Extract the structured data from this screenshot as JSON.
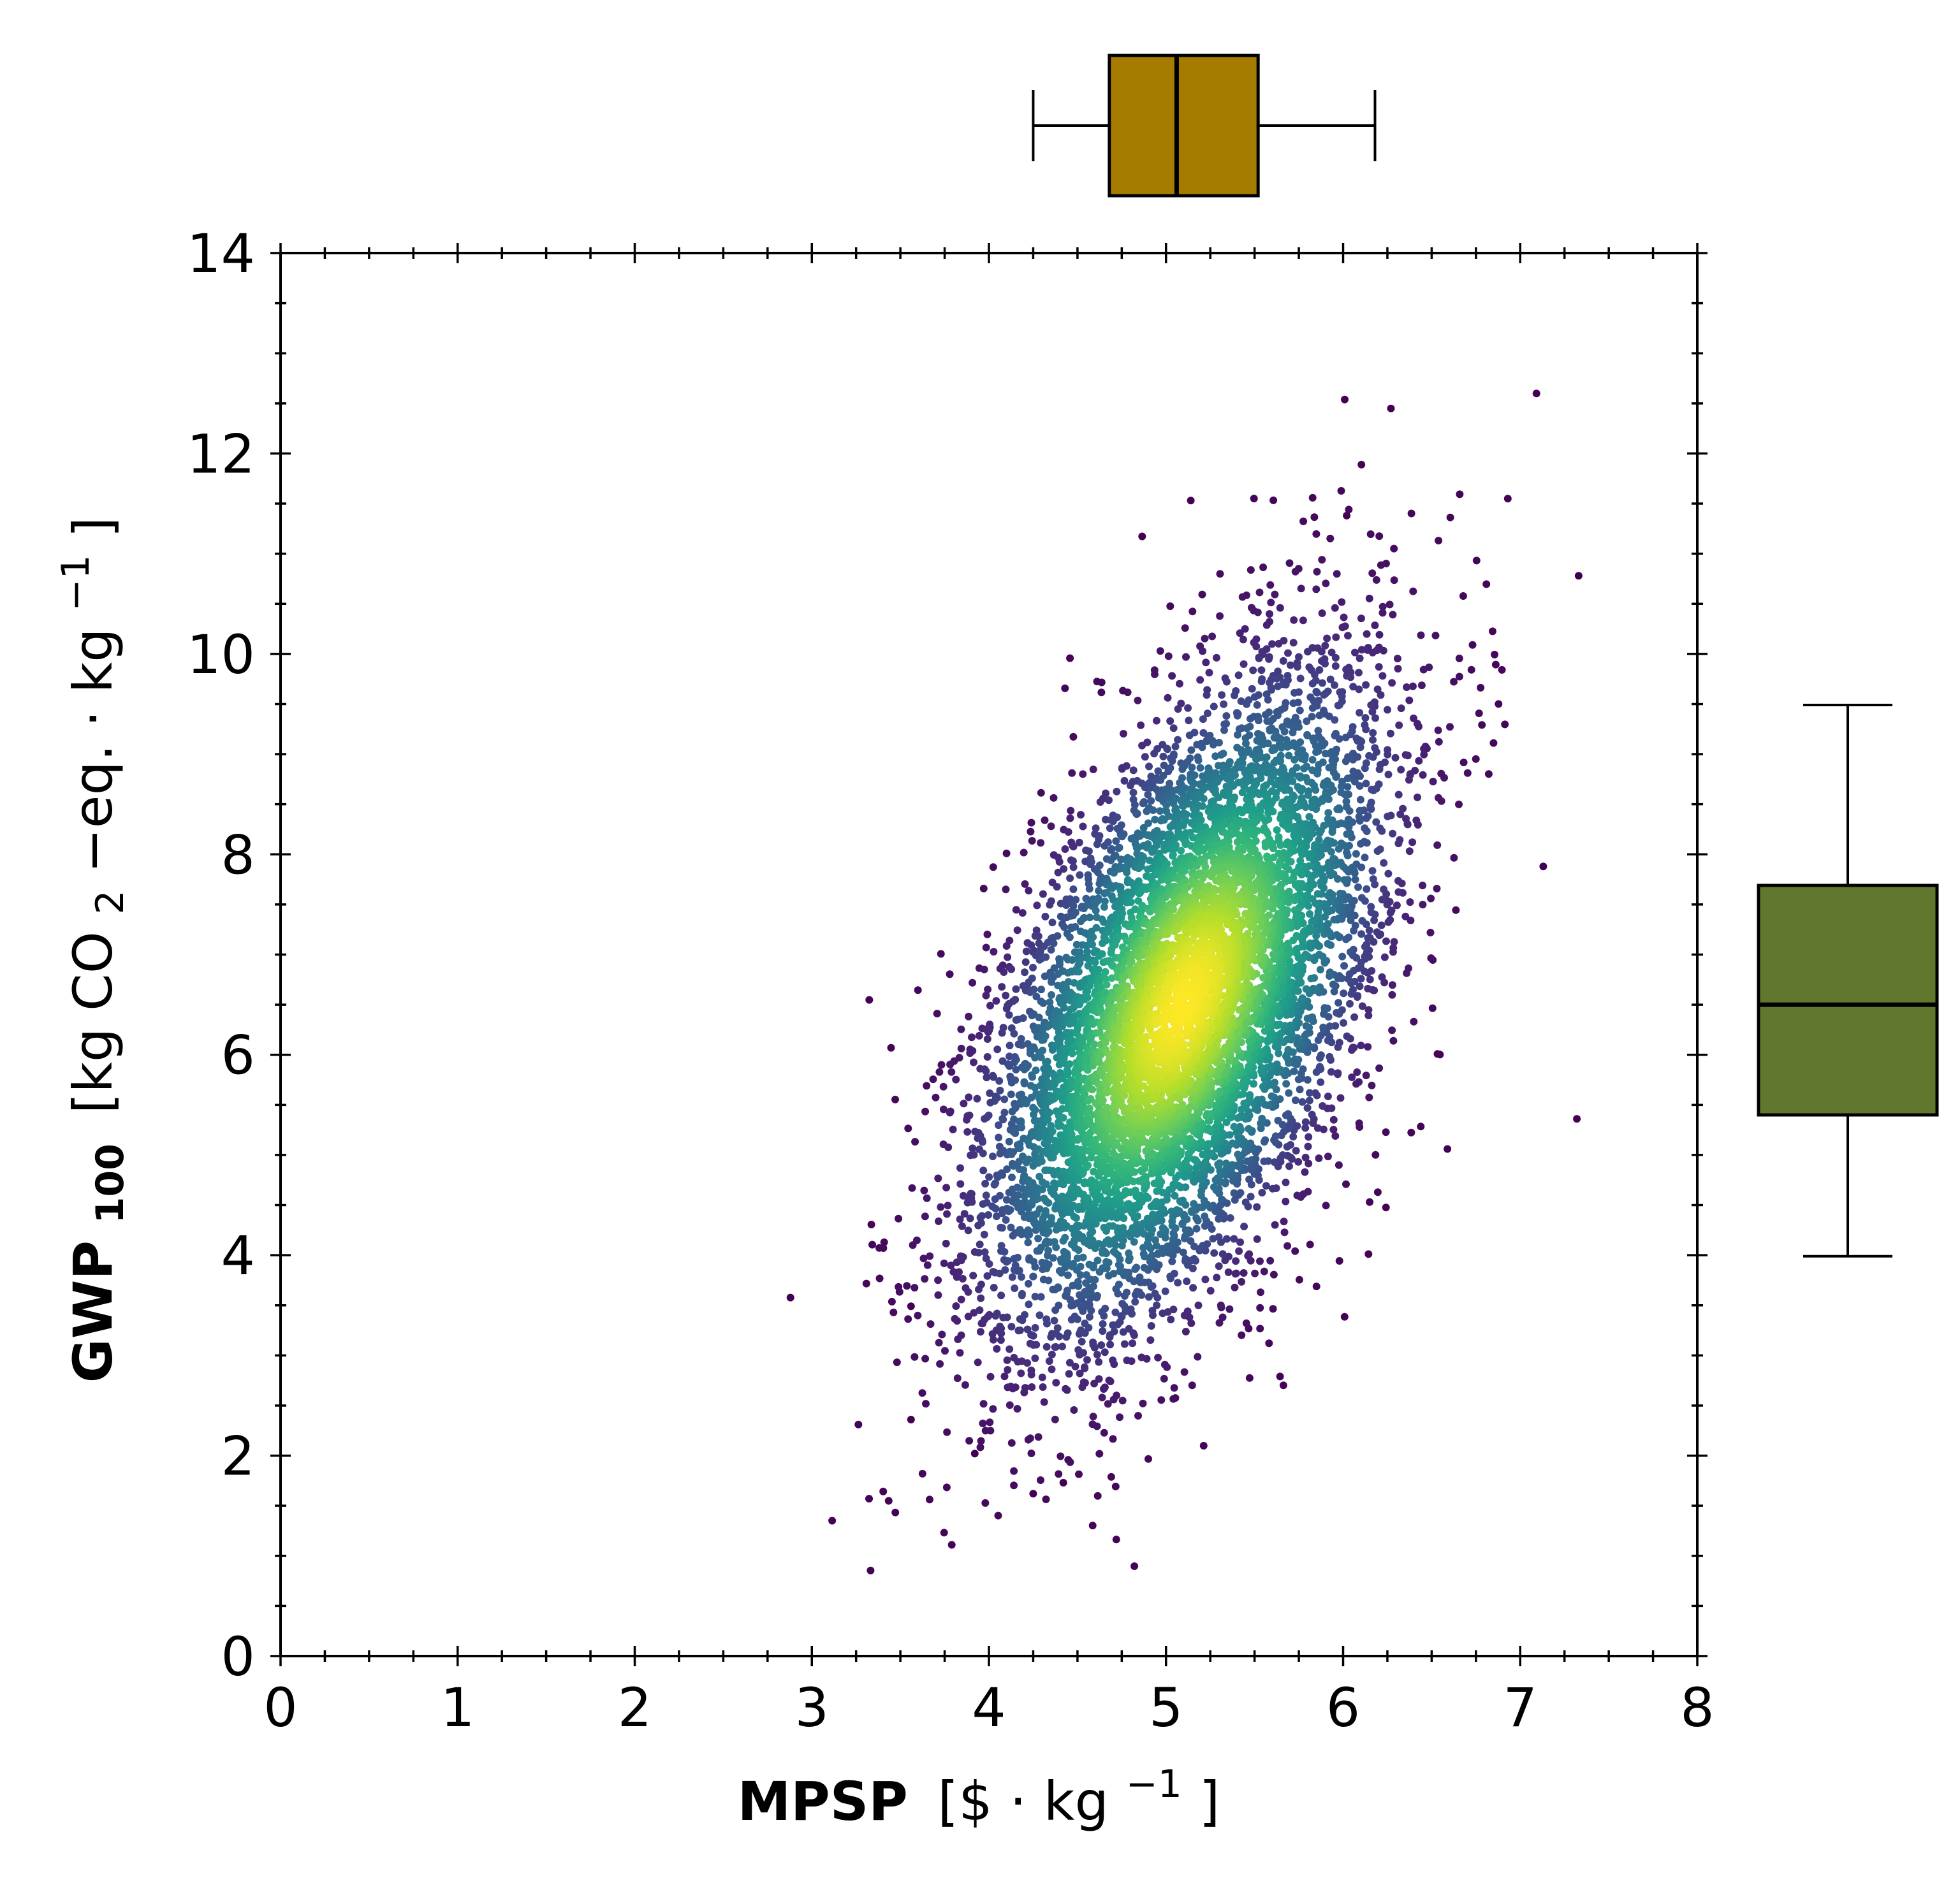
{
  "chart_data": {
    "type": "scatter",
    "title": "",
    "xlabel": {
      "main": "MPSP",
      "unit_open": "[$ · kg",
      "unit_exp": "−1",
      "unit_close": "]"
    },
    "ylabel": {
      "main": "GWP",
      "main_sub": "100",
      "unit_open": "[kg CO",
      "unit_sub": "2",
      "unit_mid": "−eq. · kg",
      "unit_exp": "−1",
      "unit_close": "]"
    },
    "xlim": [
      0,
      8
    ],
    "ylim": [
      0,
      14
    ],
    "x_ticks": [
      "0",
      "1",
      "2",
      "3",
      "4",
      "5",
      "6",
      "7",
      "8"
    ],
    "y_ticks": [
      "0",
      "2",
      "4",
      "6",
      "8",
      "10",
      "12",
      "14"
    ],
    "grid": false,
    "colormap": "viridis",
    "density_colored": true,
    "point_cloud": {
      "n": 8000,
      "x_mean": 5.1,
      "x_sd": 0.55,
      "y_mean": 6.5,
      "y_sd": 1.6,
      "correlation": 0.55
    },
    "outliers": [
      {
        "x": 6.27,
        "y": 12.45
      },
      {
        "x": 7.33,
        "y": 10.78
      },
      {
        "x": 7.32,
        "y": 5.36
      },
      {
        "x": 4.25,
        "y": 1.62
      },
      {
        "x": 4.42,
        "y": 1.73
      },
      {
        "x": 3.92,
        "y": 2.02
      },
      {
        "x": 3.56,
        "y": 2.36
      },
      {
        "x": 3.56,
        "y": 3.49
      },
      {
        "x": 7.13,
        "y": 7.88
      },
      {
        "x": 6.93,
        "y": 11.55
      },
      {
        "x": 6.02,
        "y": 11.38
      },
      {
        "x": 5.14,
        "y": 11.53
      }
    ],
    "marginal_box_x": {
      "min": 4.25,
      "q1": 4.68,
      "median": 5.06,
      "q3": 5.52,
      "max": 6.18,
      "color": "#a67c00"
    },
    "marginal_box_y": {
      "min": 3.99,
      "q1": 5.4,
      "median": 6.5,
      "q3": 7.69,
      "max": 9.49,
      "color": "#61772d"
    }
  }
}
